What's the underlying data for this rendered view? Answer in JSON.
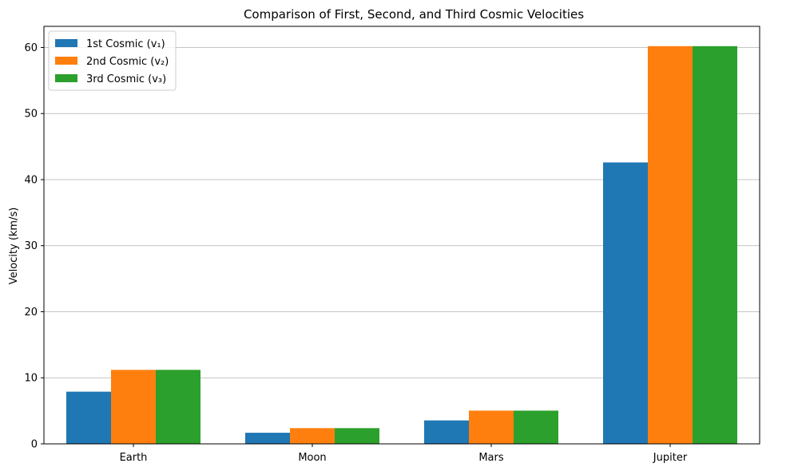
{
  "chart_data": {
    "type": "bar",
    "title": "Comparison of First, Second, and Third Cosmic Velocities",
    "xlabel": "",
    "ylabel": "Velocity (km/s)",
    "categories": [
      "Earth",
      "Moon",
      "Mars",
      "Jupiter"
    ],
    "series": [
      {
        "name": "1st Cosmic (v₁)",
        "color": "#1f77b4",
        "values": [
          7.9,
          1.68,
          3.55,
          42.6
        ]
      },
      {
        "name": "2nd Cosmic (v₂)",
        "color": "#ff7f0e",
        "values": [
          11.2,
          2.38,
          5.03,
          60.2
        ]
      },
      {
        "name": "3rd Cosmic (v₃)",
        "color": "#2ca02c",
        "values": [
          11.2,
          2.38,
          5.03,
          60.2
        ]
      }
    ],
    "ylim": [
      0,
      63.2
    ],
    "yticks": [
      0,
      10,
      20,
      30,
      40,
      50,
      60
    ],
    "grid": "y",
    "legend_position": "top-left"
  }
}
